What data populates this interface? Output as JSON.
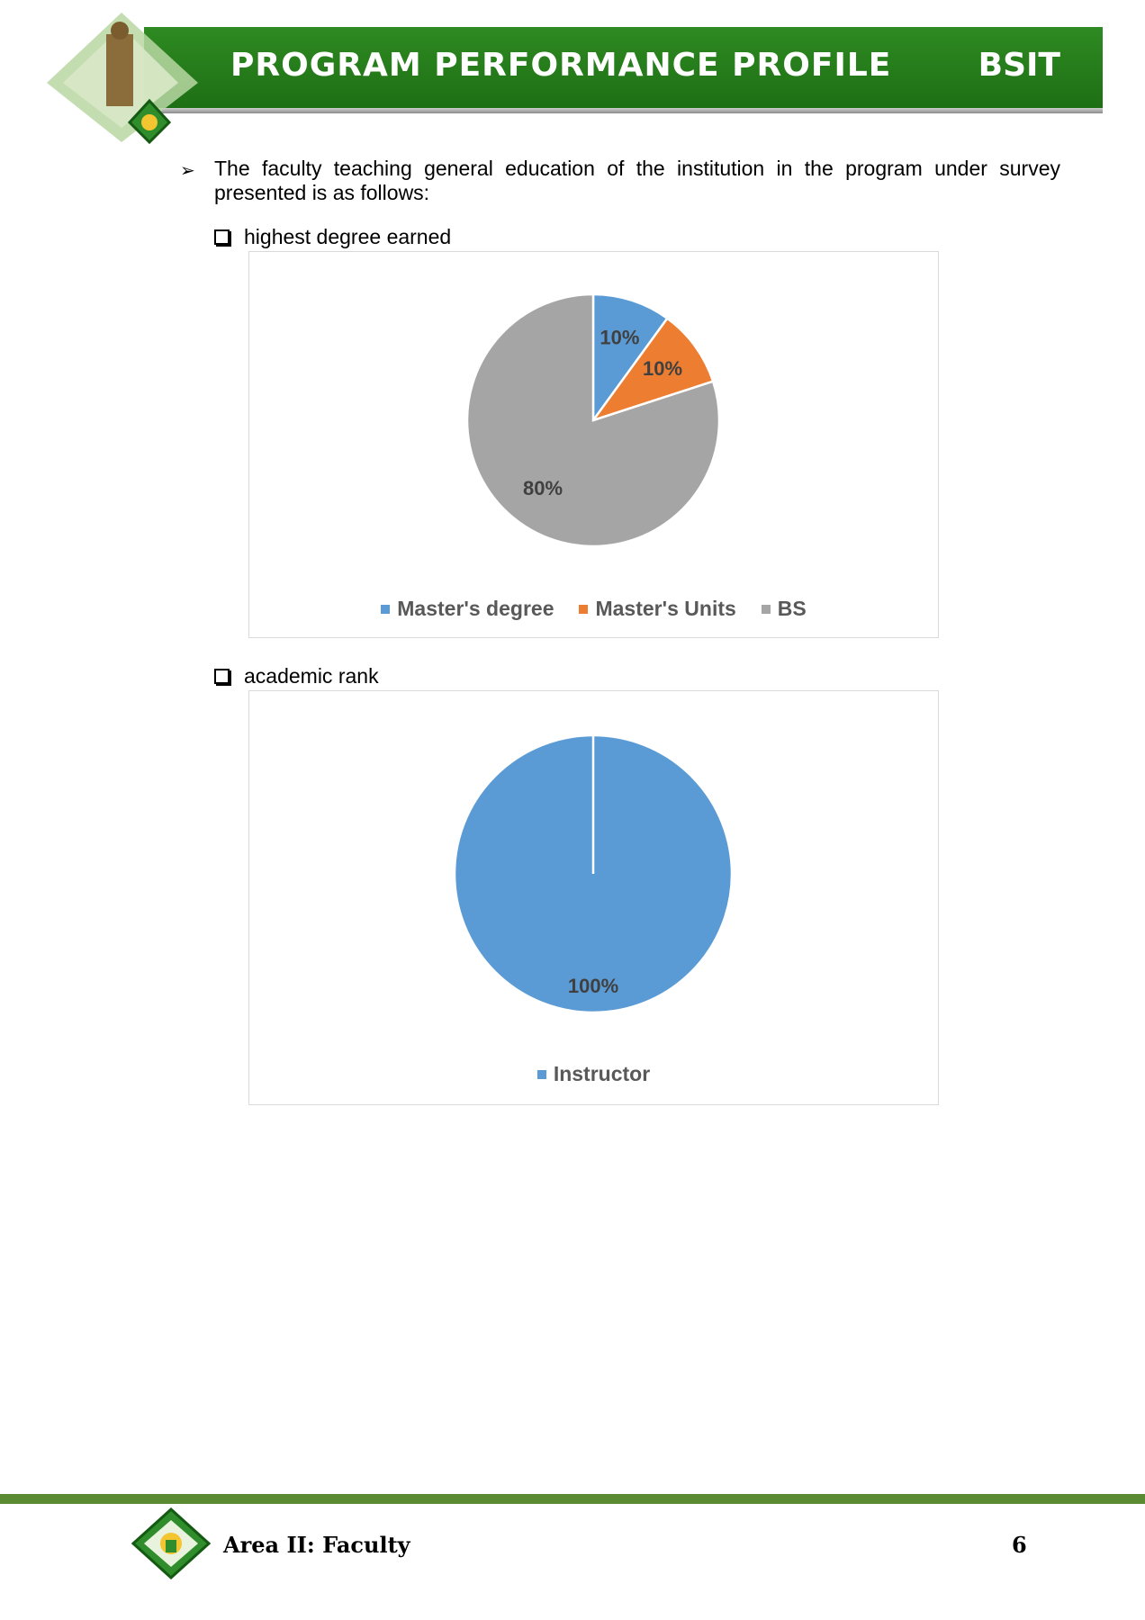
{
  "header": {
    "title": "PROGRAM PERFORMANCE PROFILE",
    "program_code": "BSIT",
    "brand_color": "#1e6f14"
  },
  "intro": {
    "text": "The faculty teaching general education of the institution in the program under survey presented is as follows:"
  },
  "sections": [
    {
      "label": "highest degree earned"
    },
    {
      "label": "academic rank"
    }
  ],
  "chart_data": [
    {
      "type": "pie",
      "title": "",
      "categories": [
        "Master's degree",
        "Master's Units",
        "BS"
      ],
      "values": [
        10,
        10,
        80
      ],
      "labels": [
        "10%",
        "10%",
        "80%"
      ],
      "colors": [
        "#5b9bd5",
        "#ed7d31",
        "#a5a5a5"
      ],
      "legend": "bottom"
    },
    {
      "type": "pie",
      "title": "",
      "categories": [
        "Instructor"
      ],
      "values": [
        100
      ],
      "labels": [
        "100%"
      ],
      "colors": [
        "#5b9bd5"
      ],
      "legend": "bottom"
    }
  ],
  "footer": {
    "area": "Area II: Faculty",
    "page": "6"
  }
}
